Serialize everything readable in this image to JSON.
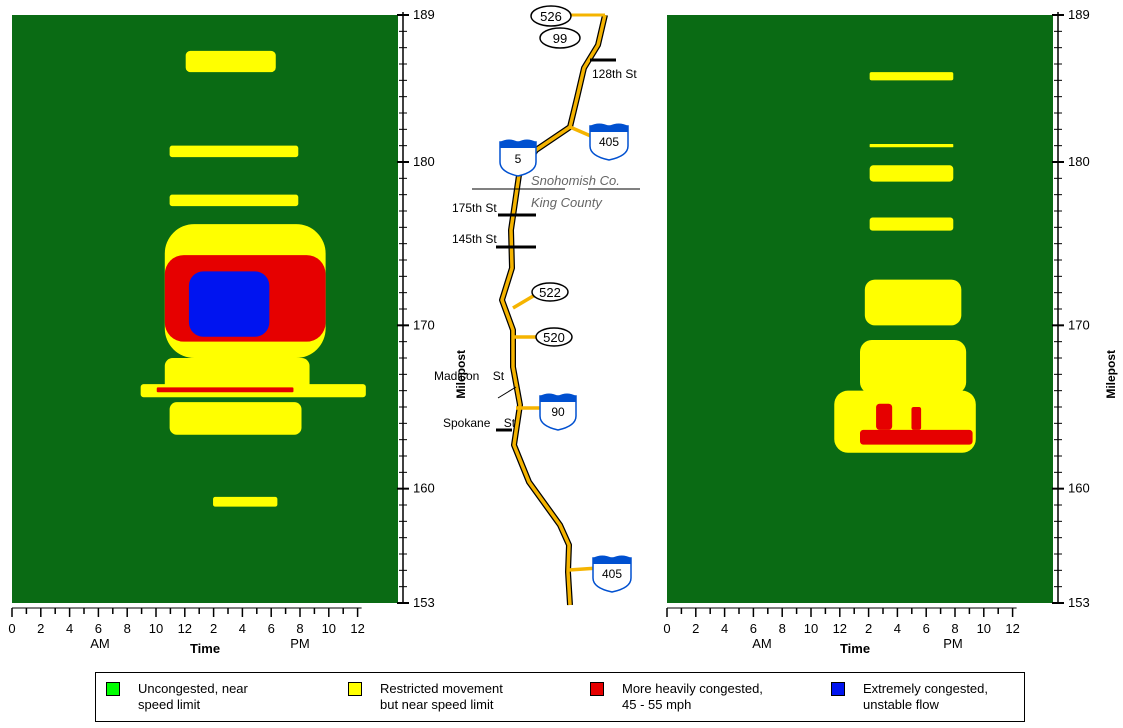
{
  "colors": {
    "uncongested_bg": "#0a6b14",
    "restricted": "#ffff00",
    "heavy": "#e60000",
    "extreme": "#0014f0",
    "legend_green": "#00ff00",
    "route": "#f5b400"
  },
  "chart_data": [
    {
      "type": "heatmap",
      "title": "",
      "xlabel": "Time",
      "ylabel": "Milepost",
      "x_ticks": [
        "0",
        "2",
        "4",
        "6",
        "8",
        "10",
        "12",
        "2",
        "4",
        "6",
        "8",
        "10",
        "12"
      ],
      "x_sublabels": {
        "am": "AM",
        "pm": "PM"
      },
      "y_tick_labels": [
        "153",
        "160",
        "170",
        "180",
        "189"
      ],
      "xlim_hours": [
        0,
        24
      ],
      "ylim_milepost": [
        153,
        189
      ],
      "regions": [
        {
          "level": "restricted",
          "start_hour": 10.8,
          "end_hour": 16.4,
          "milepost_from": 185.5,
          "milepost_to": 186.8
        },
        {
          "level": "restricted",
          "start_hour": 9.8,
          "end_hour": 17.8,
          "milepost_from": 180.3,
          "milepost_to": 181.0
        },
        {
          "level": "restricted",
          "start_hour": 9.8,
          "end_hour": 17.8,
          "milepost_from": 177.3,
          "milepost_to": 178.0
        },
        {
          "level": "restricted",
          "start_hour": 9.5,
          "end_hour": 19.5,
          "milepost_from": 168.0,
          "milepost_to": 176.2
        },
        {
          "level": "heavy",
          "start_hour": 9.5,
          "end_hour": 19.5,
          "milepost_from": 169.0,
          "milepost_to": 174.3
        },
        {
          "level": "extreme",
          "start_hour": 11.0,
          "end_hour": 16.0,
          "milepost_from": 169.3,
          "milepost_to": 173.3
        },
        {
          "level": "restricted",
          "start_hour": 9.5,
          "end_hour": 18.5,
          "milepost_from": 165.8,
          "milepost_to": 168.0
        },
        {
          "level": "restricted",
          "start_hour": 8.0,
          "end_hour": 22.0,
          "milepost_from": 165.6,
          "milepost_to": 166.4
        },
        {
          "level": "heavy",
          "start_hour": 9.0,
          "end_hour": 17.5,
          "milepost_from": 165.9,
          "milepost_to": 166.2
        },
        {
          "level": "restricted",
          "start_hour": 9.8,
          "end_hour": 18.0,
          "milepost_from": 163.3,
          "milepost_to": 165.3
        },
        {
          "level": "restricted",
          "start_hour": 12.5,
          "end_hour": 16.5,
          "milepost_from": 158.9,
          "milepost_to": 159.5
        }
      ]
    },
    {
      "type": "heatmap",
      "title": "",
      "xlabel": "Time",
      "ylabel": "Milepost",
      "x_ticks": [
        "0",
        "2",
        "4",
        "6",
        "8",
        "10",
        "12",
        "2",
        "4",
        "6",
        "8",
        "10",
        "12"
      ],
      "x_sublabels": {
        "am": "AM",
        "pm": "PM"
      },
      "y_tick_labels": [
        "153",
        "160",
        "170",
        "180",
        "189"
      ],
      "xlim_hours": [
        0,
        24
      ],
      "ylim_milepost": [
        153,
        189
      ],
      "regions": [
        {
          "level": "restricted",
          "start_hour": 12.6,
          "end_hour": 17.8,
          "milepost_from": 185.0,
          "milepost_to": 185.5
        },
        {
          "level": "restricted",
          "start_hour": 12.6,
          "end_hour": 17.8,
          "milepost_from": 180.9,
          "milepost_to": 181.1
        },
        {
          "level": "restricted",
          "start_hour": 12.6,
          "end_hour": 17.8,
          "milepost_from": 178.8,
          "milepost_to": 179.8
        },
        {
          "level": "restricted",
          "start_hour": 12.6,
          "end_hour": 17.8,
          "milepost_from": 175.8,
          "milepost_to": 176.6
        },
        {
          "level": "restricted",
          "start_hour": 12.3,
          "end_hour": 18.3,
          "milepost_from": 170.0,
          "milepost_to": 172.8
        },
        {
          "level": "restricted",
          "start_hour": 12.0,
          "end_hour": 18.6,
          "milepost_from": 165.8,
          "milepost_to": 169.1
        },
        {
          "level": "restricted",
          "start_hour": 10.4,
          "end_hour": 19.2,
          "milepost_from": 162.2,
          "milepost_to": 166.0
        },
        {
          "level": "heavy",
          "start_hour": 12.0,
          "end_hour": 19.0,
          "milepost_from": 162.7,
          "milepost_to": 163.6
        },
        {
          "level": "heavy",
          "start_hour": 13.0,
          "end_hour": 14.0,
          "milepost_from": 163.6,
          "milepost_to": 165.2
        },
        {
          "level": "heavy",
          "start_hour": 15.2,
          "end_hour": 15.8,
          "milepost_from": 163.6,
          "milepost_to": 165.0
        }
      ]
    }
  ],
  "map": {
    "routes": {
      "sr526": "526",
      "sr99": "99",
      "i405_north": "405",
      "i5": "5",
      "sr522": "522",
      "sr520": "520",
      "i90": "90",
      "i405_south": "405"
    },
    "streets": {
      "st128": "128th St",
      "st175": "175th St",
      "st145": "145th St",
      "madison": "Madison    St",
      "spokane": "Spokane    St"
    },
    "counties": {
      "north": "Snohomish Co.",
      "south": "King County"
    }
  },
  "legend": [
    {
      "key": "legend_green",
      "label": "Uncongested, near\nspeed limit"
    },
    {
      "key": "restricted",
      "label": "Restricted movement\nbut near speed limit"
    },
    {
      "key": "heavy",
      "label": "More heavily congested,\n45 - 55 mph"
    },
    {
      "key": "extreme",
      "label": "Extremely congested,\nunstable flow"
    }
  ]
}
